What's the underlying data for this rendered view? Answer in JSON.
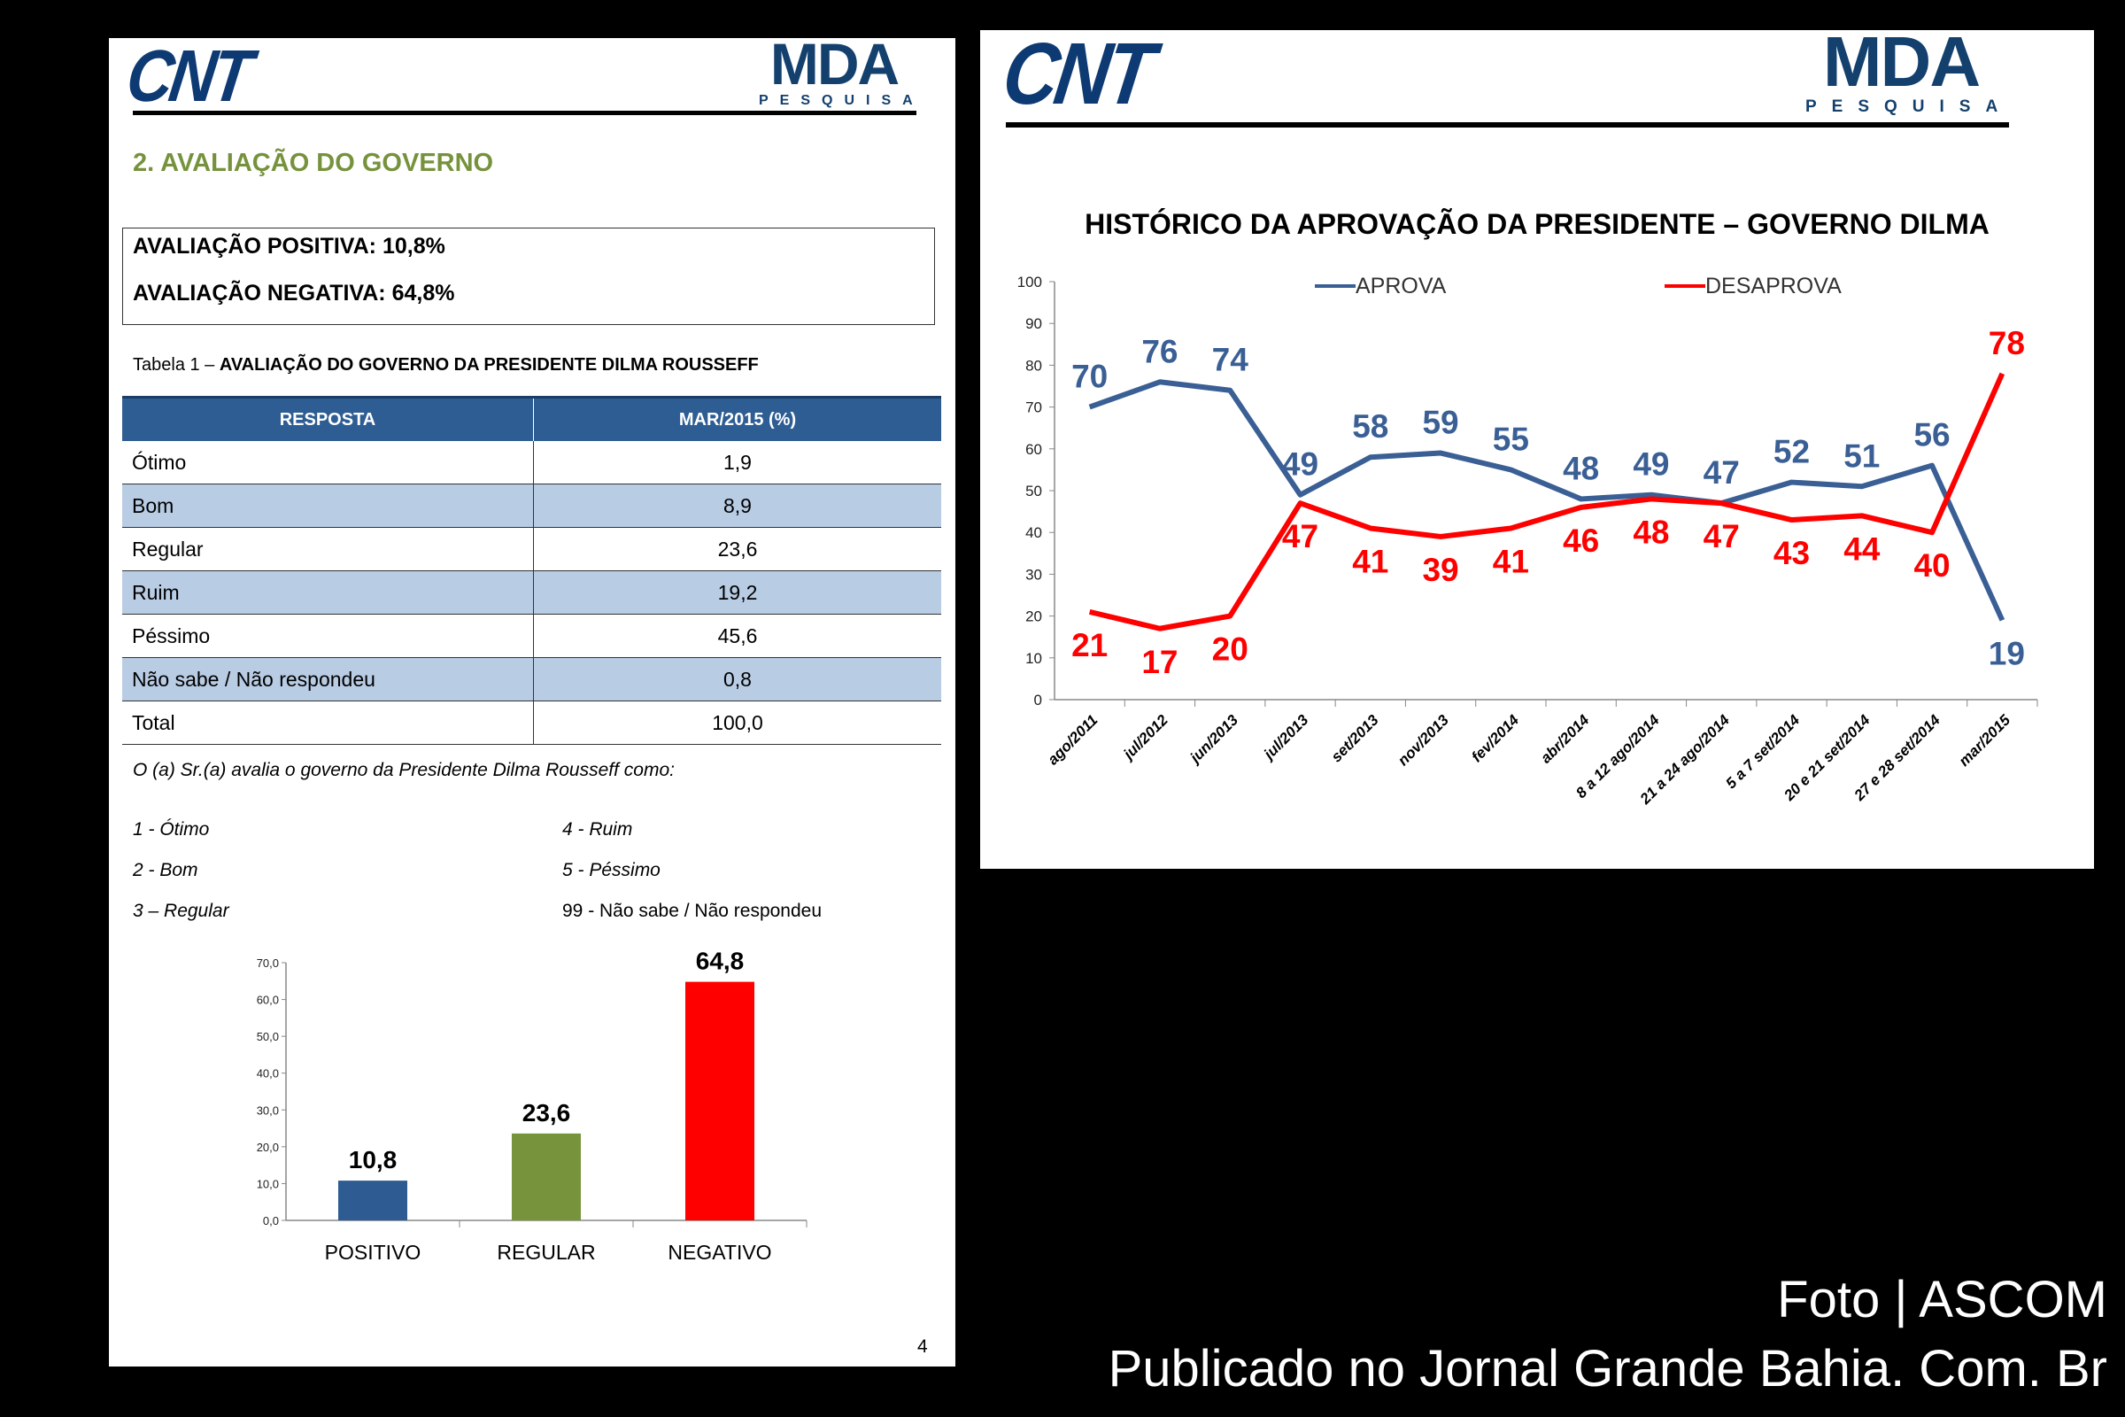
{
  "left_page": {
    "logo_left": "CNT",
    "logo_right": "MDA",
    "logo_right_sub": "PESQUISA",
    "section_title": "2. AVALIAÇÃO DO GOVERNO",
    "summary": {
      "positive": "AVALIAÇÃO POSITIVA: 10,8%",
      "negative": "AVALIAÇÃO NEGATIVA: 64,8%"
    },
    "table_caption_prefix": "Tabela 1 – ",
    "table_caption_title": "AVALIAÇÃO DO GOVERNO DA PRESIDENTE DILMA ROUSSEFF",
    "table": {
      "headers": [
        "RESPOSTA",
        "MAR/2015 (%)"
      ],
      "rows": [
        [
          "Ótimo",
          "1,9"
        ],
        [
          "Bom",
          "8,9"
        ],
        [
          "Regular",
          "23,6"
        ],
        [
          "Ruim",
          "19,2"
        ],
        [
          "Péssimo",
          "45,6"
        ],
        [
          "Não sabe / Não respondeu",
          "0,8"
        ],
        [
          "Total",
          "100,0"
        ]
      ]
    },
    "question": "O (a) Sr.(a) avalia o governo da Presidente Dilma Rousseff como:",
    "answer_codes": [
      "1 - Ótimo",
      "2 - Bom",
      "3 – Regular",
      "4 - Ruim",
      "5 - Péssimo",
      "99 - Não sabe / Não respondeu"
    ],
    "page_number": "4"
  },
  "right_page": {
    "logo_left": "CNT",
    "logo_right": "MDA",
    "logo_right_sub": "PESQUISA"
  },
  "footer": {
    "line1": "Foto | ASCOM",
    "line2": "Publicado no Jornal Grande Bahia. Com. Br"
  },
  "chart_data": [
    {
      "type": "bar",
      "categories": [
        "POSITIVO",
        "REGULAR",
        "NEGATIVO"
      ],
      "values": [
        10.8,
        23.6,
        64.8
      ],
      "value_labels": [
        "10,8",
        "23,6",
        "64,8"
      ],
      "colors": [
        "#2e5b92",
        "#77933c",
        "#ff0000"
      ],
      "yticks": [
        "0,0",
        "10,0",
        "20,0",
        "30,0",
        "40,0",
        "50,0",
        "60,0",
        "70,0"
      ],
      "ylim": [
        0,
        70
      ],
      "grid": false
    },
    {
      "type": "line",
      "title": "HISTÓRICO DA APROVAÇÃO DA PRESIDENTE – GOVERNO DILMA",
      "categories": [
        "ago/2011",
        "jul/2012",
        "jun/2013",
        "jul/2013",
        "set/2013",
        "nov/2013",
        "fev/2014",
        "abr/2014",
        "8 a 12 ago/2014",
        "21 a 24 ago/2014",
        "5 a 7 set/2014",
        "20 e 21 set/2014",
        "27 e 28 set/2014",
        "mar/2015"
      ],
      "series": [
        {
          "name": "APROVA",
          "color": "#3a5f95",
          "values": [
            70,
            76,
            74,
            49,
            58,
            59,
            55,
            48,
            49,
            47,
            52,
            51,
            56,
            19
          ]
        },
        {
          "name": "DESAPROVA",
          "color": "#ff0000",
          "values": [
            21,
            17,
            20,
            47,
            41,
            39,
            41,
            46,
            48,
            47,
            43,
            44,
            40,
            78
          ]
        }
      ],
      "yticks": [
        0,
        10,
        20,
        30,
        40,
        50,
        60,
        70,
        80,
        90,
        100
      ],
      "ylim": [
        0,
        100
      ],
      "legend": "top",
      "grid": false
    }
  ]
}
